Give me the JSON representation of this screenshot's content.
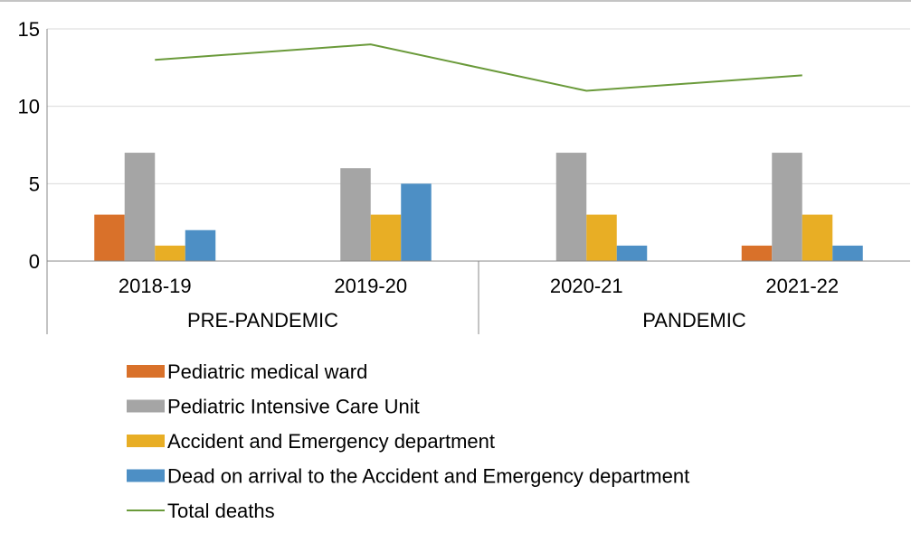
{
  "chart_data": {
    "type": "bar",
    "categories": [
      "2018-19",
      "2019-20",
      "2020-21",
      "2021-22"
    ],
    "groups": [
      {
        "label": "PRE-PANDEMIC",
        "categories": [
          "2018-19",
          "2019-20"
        ]
      },
      {
        "label": "PANDEMIC",
        "categories": [
          "2020-21",
          "2021-22"
        ]
      }
    ],
    "series": [
      {
        "name": "Pediatric medical ward",
        "type": "bar",
        "color": "#D9712A",
        "values": [
          3,
          0,
          0,
          1
        ]
      },
      {
        "name": "Pediatric Intensive Care Unit",
        "type": "bar",
        "color": "#A5A5A5",
        "values": [
          7,
          6,
          7,
          7
        ]
      },
      {
        "name": "Accident and Emergency department",
        "type": "bar",
        "color": "#E8AE25",
        "values": [
          1,
          3,
          3,
          3
        ]
      },
      {
        "name": "Dead on arrival to the Accident and Emergency department",
        "type": "bar",
        "color": "#4D8FC5",
        "values": [
          2,
          5,
          1,
          1
        ]
      },
      {
        "name": "Total deaths",
        "type": "line",
        "color": "#6A9A3A",
        "values": [
          13,
          14,
          11,
          12
        ]
      }
    ],
    "ylim": [
      0,
      15
    ],
    "yticks": [
      0,
      5,
      10,
      15
    ],
    "grid": true,
    "legend": "bottom"
  }
}
